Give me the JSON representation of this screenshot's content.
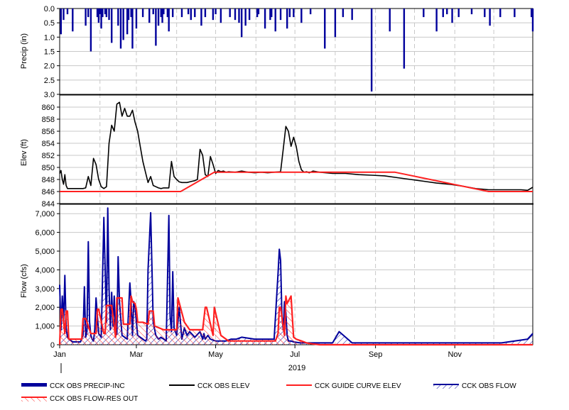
{
  "chart_data": [
    {
      "type": "bar",
      "ylabel": "Precip (in)",
      "ylim": [
        0,
        3
      ],
      "y_inverted": true,
      "yticks": [
        "0.0",
        "0.5",
        "1.0",
        "1.5",
        "2.0",
        "2.5",
        "3.0"
      ],
      "grid": true,
      "color": "#00009c",
      "series": [
        {
          "x": [
            1,
            3,
            6,
            10,
            20,
            22,
            24,
            29,
            30,
            31,
            32,
            33,
            35,
            36,
            38,
            40,
            45,
            47,
            49,
            52,
            53,
            55,
            56,
            59,
            64,
            69,
            72,
            74,
            76,
            78,
            79,
            80,
            83,
            84,
            87,
            94,
            99,
            101,
            104,
            109,
            112,
            118,
            120,
            124,
            131,
            135,
            138,
            140,
            143,
            146,
            152,
            153,
            158,
            162,
            163,
            166,
            170,
            175,
            177,
            180,
            186,
            193,
            204,
            212,
            218,
            225,
            240,
            254,
            265,
            280,
            290,
            295,
            298,
            302,
            307,
            317,
            327,
            331,
            339,
            350,
            363,
            364
          ],
          "values": [
            0.9,
            0.4,
            0.2,
            0.8,
            0.6,
            0.3,
            1.5,
            0.3,
            0.5,
            0.2,
            0.7,
            0.3,
            0.2,
            0.3,
            0.4,
            1.2,
            0.6,
            1.4,
            1.1,
            0.9,
            0.4,
            0.3,
            1.4,
            0.7,
            0.3,
            0.5,
            0.2,
            1.3,
            0.6,
            0.3,
            0.5,
            0.2,
            0.3,
            0.8,
            0.3,
            0.3,
            0.2,
            0.4,
            0.3,
            0.6,
            0.3,
            0.4,
            0.2,
            0.5,
            0.3,
            0.4,
            0.5,
            1.0,
            0.6,
            0.4,
            0.3,
            0.2,
            0.7,
            0.4,
            0.3,
            0.8,
            0.4,
            0.7,
            0.3,
            0.3,
            0.5,
            0.2,
            1.4,
            1.0,
            0.3,
            0.4,
            2.9,
            0.8,
            2.1,
            0.3,
            0.8,
            0.3,
            0.2,
            0.5,
            0.3,
            0.2,
            0.3,
            0.6,
            0.3,
            0.3,
            0.3,
            0.8
          ]
        }
      ]
    },
    {
      "type": "line",
      "ylabel": "Elev (ft)",
      "ylim": [
        844,
        862
      ],
      "yticks": [
        "844",
        "846",
        "848",
        "850",
        "852",
        "854",
        "856",
        "858",
        "860"
      ],
      "grid": true,
      "series": [
        {
          "name": "CCK OBS ELEV",
          "color": "#000000",
          "x": [
            0,
            1,
            2,
            3,
            4,
            5,
            6,
            8,
            10,
            12,
            14,
            16,
            18,
            20,
            22,
            24,
            26,
            28,
            30,
            32,
            34,
            36,
            38,
            40,
            42,
            44,
            46,
            48,
            50,
            52,
            54,
            56,
            58,
            60,
            62,
            64,
            66,
            68,
            70,
            72,
            74,
            76,
            78,
            80,
            82,
            84,
            86,
            88,
            90,
            92,
            94,
            96,
            98,
            100,
            102,
            104,
            106,
            108,
            110,
            112,
            114,
            116,
            118,
            120,
            122,
            124,
            126,
            128,
            130,
            135,
            140,
            145,
            150,
            155,
            160,
            165,
            170,
            172,
            174,
            176,
            178,
            180,
            182,
            184,
            186,
            188,
            190,
            192,
            195,
            200,
            210,
            220,
            230,
            240,
            250,
            260,
            270,
            280,
            290,
            300,
            310,
            320,
            330,
            340,
            350,
            355,
            360,
            364
          ],
          "values": [
            849.0,
            849.5,
            848.0,
            847.2,
            848.8,
            847.0,
            846.5,
            846.5,
            846.5,
            846.5,
            846.5,
            846.5,
            846.5,
            846.6,
            848.5,
            847.0,
            851.5,
            850.5,
            848.0,
            846.8,
            846.5,
            846.8,
            854.0,
            857.0,
            856.0,
            860.5,
            860.8,
            858.5,
            859.8,
            858.5,
            858.5,
            859.5,
            857.5,
            856.0,
            853.5,
            851.0,
            849.2,
            847.5,
            848.5,
            847.0,
            846.8,
            846.6,
            846.5,
            846.6,
            846.6,
            846.6,
            851.0,
            848.5,
            848.0,
            847.6,
            847.5,
            847.5,
            847.5,
            847.6,
            847.7,
            847.8,
            848.0,
            853.0,
            852.0,
            848.8,
            848.5,
            851.8,
            850.5,
            849.0,
            849.5,
            849.3,
            849.4,
            849.2,
            849.3,
            849.2,
            849.4,
            849.2,
            849.1,
            849.2,
            849.1,
            849.2,
            849.3,
            853.0,
            856.8,
            856.0,
            853.5,
            855.0,
            853.5,
            851.0,
            849.6,
            849.2,
            849.3,
            849.1,
            849.4,
            849.2,
            849.0,
            849.0,
            848.8,
            848.7,
            848.6,
            848.3,
            848.0,
            847.7,
            847.4,
            847.2,
            846.9,
            846.5,
            846.3,
            846.3,
            846.3,
            846.3,
            846.2,
            846.7
          ]
        },
        {
          "name": "CCK GUIDE CURVE ELEV",
          "color": "#ff2020",
          "x": [
            0,
            93,
            119,
            258,
            330,
            364
          ],
          "values": [
            846.0,
            846.0,
            849.2,
            849.2,
            846.0,
            846.0
          ]
        }
      ]
    },
    {
      "type": "area",
      "ylabel": "Flow (cfs)",
      "ylim": [
        0,
        7500
      ],
      "yticks": [
        "0",
        "1,000",
        "2,000",
        "3,000",
        "4,000",
        "5,000",
        "6,000",
        "7,000"
      ],
      "xticks": [
        "Jan",
        "Mar",
        "May",
        "Jul",
        "Sep",
        "Nov"
      ],
      "xtick_days": [
        0,
        59,
        120,
        181,
        243,
        304
      ],
      "x_sublabel": "2019",
      "grid": true,
      "series": [
        {
          "name": "CCK OBS FLOW",
          "color": "#00009c",
          "x": [
            0,
            1,
            2,
            3,
            4,
            5,
            6,
            7,
            8,
            9,
            10,
            12,
            14,
            16,
            18,
            19,
            20,
            21,
            22,
            23,
            24,
            25,
            26,
            27,
            28,
            30,
            32,
            34,
            36,
            37,
            38,
            39,
            40,
            41,
            42,
            43,
            44,
            45,
            46,
            48,
            50,
            52,
            54,
            55,
            56,
            57,
            58,
            60,
            62,
            64,
            65,
            66,
            67,
            68,
            70,
            72,
            74,
            76,
            78,
            80,
            82,
            84,
            85,
            86,
            87,
            88,
            90,
            92,
            94,
            96,
            98,
            100,
            104,
            108,
            110,
            111,
            112,
            113,
            114,
            116,
            118,
            120,
            124,
            128,
            132,
            136,
            140,
            150,
            160,
            165,
            168,
            169,
            170,
            171,
            172,
            173,
            174,
            175,
            176,
            178,
            180,
            185,
            190,
            200,
            210,
            215,
            225,
            250,
            300,
            340,
            360,
            364
          ],
          "values": [
            3200,
            800,
            2600,
            1200,
            3700,
            900,
            400,
            300,
            250,
            200,
            150,
            150,
            150,
            150,
            500,
            3100,
            400,
            700,
            5500,
            1200,
            500,
            300,
            200,
            800,
            2500,
            600,
            400,
            6800,
            1200,
            7300,
            3000,
            800,
            2800,
            1000,
            2600,
            500,
            600,
            4700,
            2300,
            500,
            400,
            300,
            3300,
            2300,
            500,
            2300,
            2000,
            500,
            400,
            300,
            250,
            200,
            300,
            4000,
            7050,
            1200,
            500,
            300,
            400,
            300,
            200,
            6900,
            1500,
            700,
            3900,
            900,
            500,
            2000,
            300,
            900,
            500,
            700,
            400,
            700,
            300,
            600,
            300,
            400,
            500,
            300,
            250,
            200,
            200,
            200,
            300,
            300,
            400,
            300,
            300,
            300,
            3800,
            5100,
            4500,
            1500,
            800,
            2300,
            1700,
            500,
            200,
            200,
            150,
            100,
            100,
            100,
            100,
            700,
            100,
            100,
            100,
            100,
            300,
            600
          ]
        },
        {
          "name": "CCK OBS FLOW-RES OUT",
          "color": "#ff2020",
          "x": [
            0,
            1,
            2,
            4,
            5,
            6,
            7,
            10,
            14,
            17,
            18,
            20,
            24,
            28,
            29,
            30,
            34,
            35,
            36,
            40,
            43,
            44,
            48,
            49,
            54,
            55,
            56,
            58,
            59,
            60,
            64,
            68,
            69,
            72,
            73,
            80,
            90,
            91,
            96,
            100,
            104,
            110,
            112,
            113,
            118,
            119,
            124,
            128,
            130,
            140,
            150,
            160,
            166,
            168,
            169,
            170,
            173,
            174,
            175,
            178,
            180,
            182,
            186,
            190,
            194,
            200,
            364
          ],
          "values": [
            0,
            1900,
            1900,
            600,
            1800,
            1800,
            300,
            300,
            300,
            300,
            1400,
            1400,
            600,
            600,
            1900,
            1900,
            600,
            600,
            2100,
            2100,
            400,
            2500,
            2500,
            1100,
            1100,
            2600,
            2300,
            2200,
            1900,
            1200,
            1200,
            1100,
            1800,
            1800,
            1000,
            800,
            800,
            2500,
            1200,
            800,
            800,
            800,
            2000,
            2000,
            500,
            2000,
            500,
            300,
            200,
            200,
            200,
            200,
            200,
            600,
            2000,
            2000,
            500,
            2600,
            2200,
            2600,
            400,
            300,
            200,
            100,
            50,
            0,
            0
          ]
        }
      ]
    }
  ],
  "legend": {
    "items": [
      {
        "label": "CCK OBS PRECIP-INC",
        "style": "thick-line",
        "color": "#00009c"
      },
      {
        "label": "CCK OBS ELEV",
        "style": "line",
        "color": "#000000"
      },
      {
        "label": "CCK GUIDE CURVE ELEV",
        "style": "line",
        "color": "#ff2020"
      },
      {
        "label": "CCK OBS FLOW",
        "style": "hatch",
        "color": "#00009c"
      },
      {
        "label": "CCK OBS FLOW-RES OUT",
        "style": "hatch",
        "color": "#ff2020"
      }
    ]
  }
}
